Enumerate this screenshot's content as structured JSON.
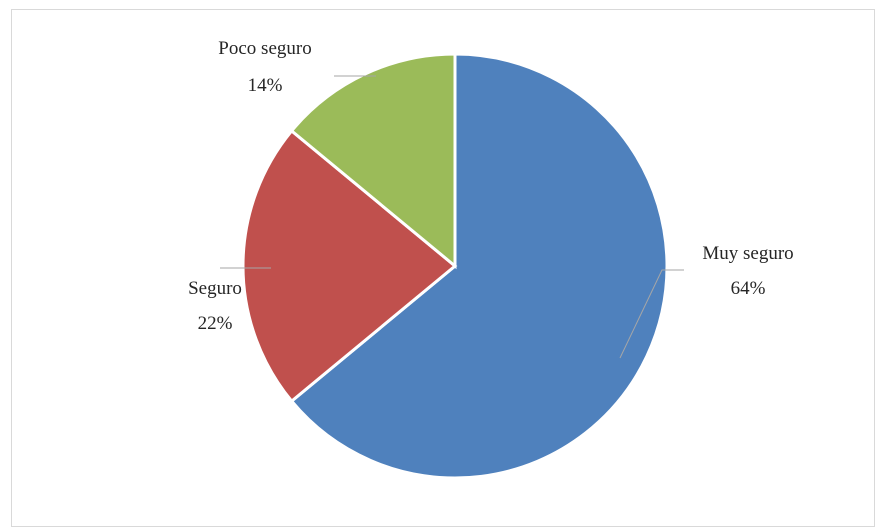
{
  "chart_data": {
    "type": "pie",
    "slices": [
      {
        "label": "Muy seguro",
        "value": 64,
        "value_label": "64%",
        "color": "#4f81bd"
      },
      {
        "label": "Seguro",
        "value": 22,
        "value_label": "22%",
        "color": "#c0504d"
      },
      {
        "label": "Poco seguro",
        "value": 14,
        "value_label": "14%",
        "color": "#9bbb59"
      }
    ],
    "start": "12 o'clock",
    "direction": "clockwise",
    "legend": "none"
  }
}
